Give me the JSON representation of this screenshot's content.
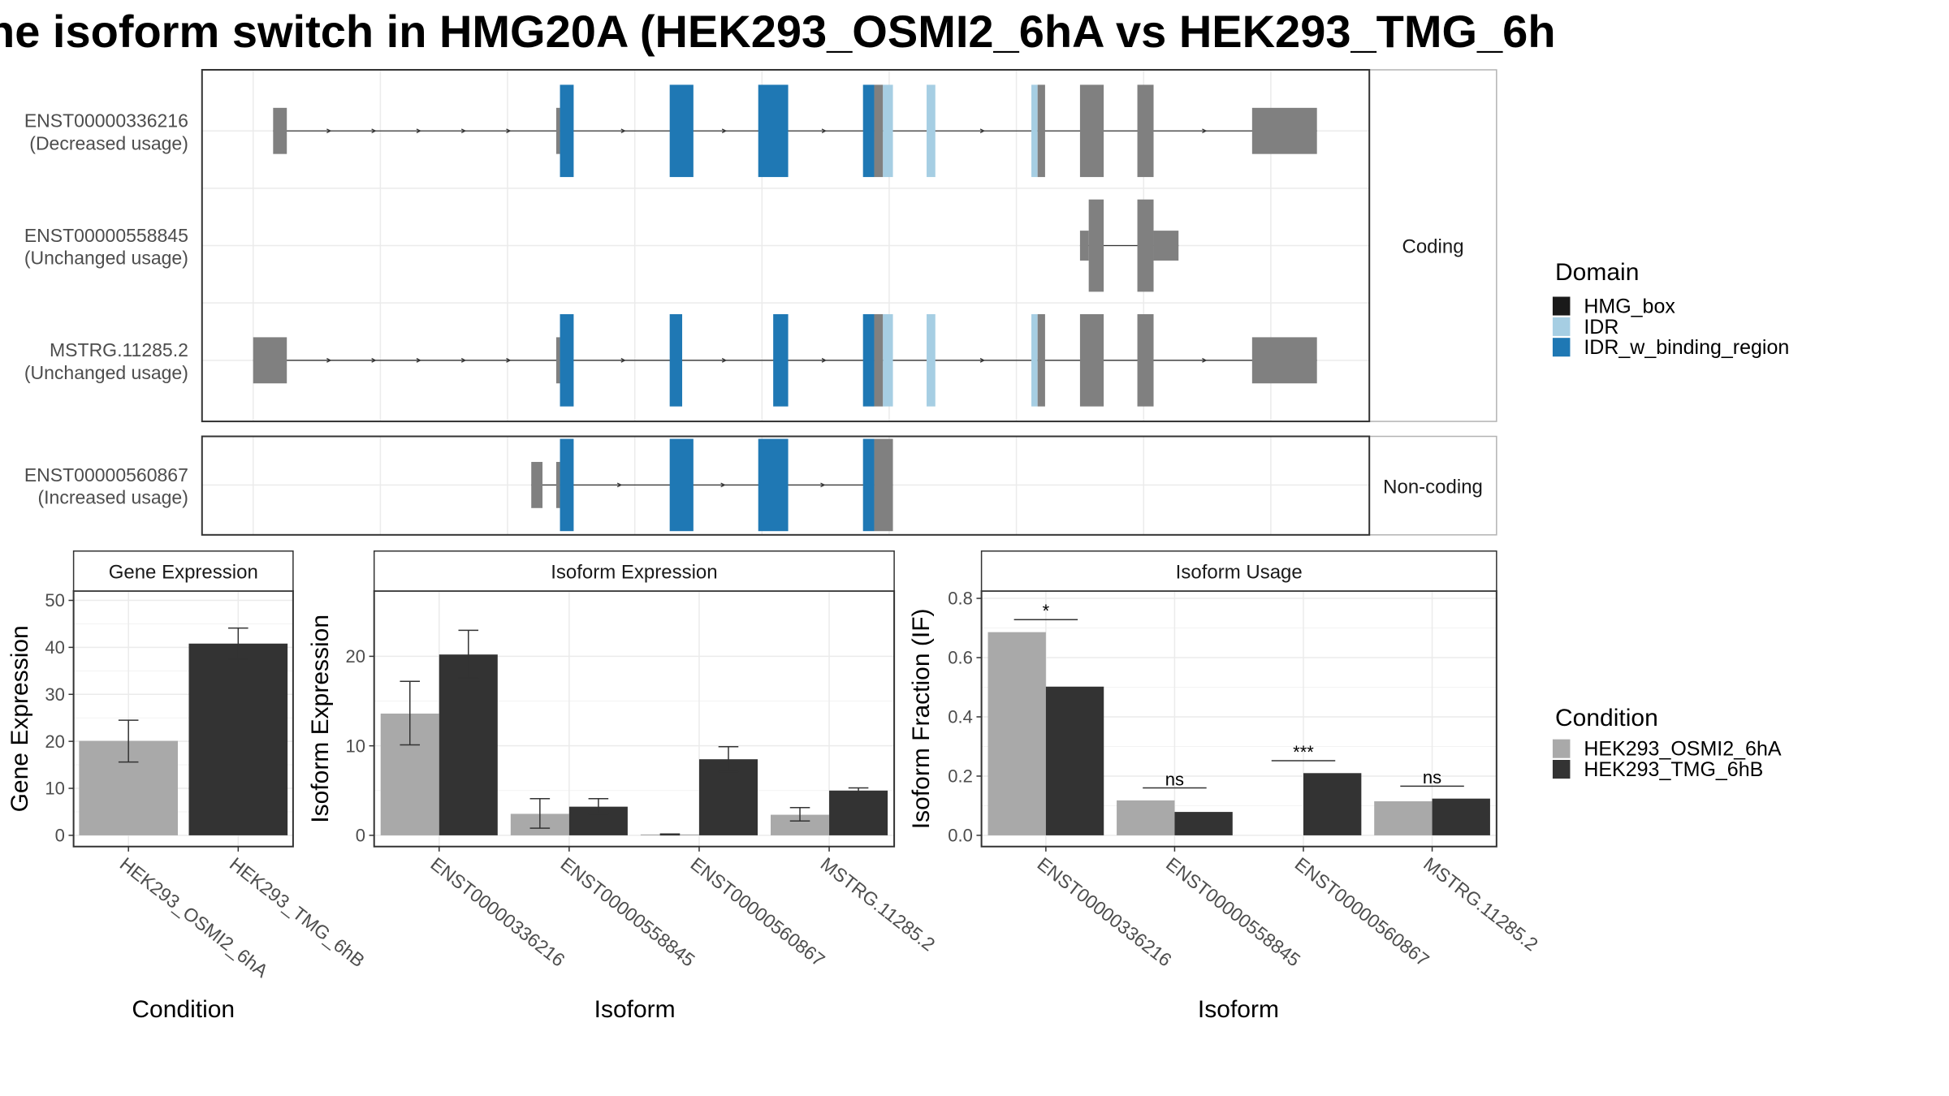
{
  "title": "ne isoform switch in HMG20A (HEK293_OSMI2_6hA vs HEK293_TMG_6h",
  "colors": {
    "exon": "#808080",
    "HMG_box": "#1a1a1a",
    "IDR": "#a6cee3",
    "IDR_w_binding_region": "#1f78b4",
    "cond1": "#a9a9a9",
    "cond2": "#333333",
    "grid": "#ebebeb",
    "panel_border": "#333333",
    "strip_border": "#b3b3b3"
  },
  "structure": {
    "groups": [
      {
        "label": "Coding",
        "isoforms": [
          {
            "id": "ENST00000336216",
            "usage": "(Decreased usage)",
            "exons": [
              [
                219,
                230,
                "e"
              ],
              [
                446,
                449,
                "e"
              ],
              [
                449,
                460,
                "b"
              ],
              [
                537,
                556,
                "b"
              ],
              [
                608,
                632,
                "b"
              ],
              [
                692,
                701,
                "b"
              ],
              [
                701,
                708,
                "e"
              ],
              [
                708,
                716,
                "l"
              ],
              [
                743,
                750,
                "l"
              ],
              [
                827,
                832,
                "l"
              ],
              [
                832,
                838,
                "e"
              ],
              [
                866,
                885,
                "e"
              ],
              [
                912,
                925,
                "e"
              ],
              [
                1004,
                1056,
                "e"
              ]
            ],
            "arrows": [
              265,
              301,
              337,
              373,
              409,
              501,
              582,
              662,
              789,
              967
            ]
          },
          {
            "id": "ENST00000558845",
            "usage": "(Unchanged usage)",
            "exons": [
              [
                866,
                873,
                "s"
              ],
              [
                873,
                885,
                "e"
              ],
              [
                912,
                925,
                "e"
              ],
              [
                925,
                945,
                "s"
              ]
            ],
            "arrows": []
          },
          {
            "id": "MSTRG.11285.2",
            "usage": "(Unchanged usage)",
            "exons": [
              [
                203,
                230,
                "e"
              ],
              [
                446,
                449,
                "e"
              ],
              [
                449,
                460,
                "b"
              ],
              [
                537,
                547,
                "b"
              ],
              [
                620,
                632,
                "b"
              ],
              [
                692,
                701,
                "b"
              ],
              [
                701,
                708,
                "e"
              ],
              [
                708,
                716,
                "l"
              ],
              [
                743,
                750,
                "l"
              ],
              [
                827,
                832,
                "l"
              ],
              [
                832,
                838,
                "e"
              ],
              [
                866,
                885,
                "e"
              ],
              [
                912,
                925,
                "e"
              ],
              [
                1004,
                1056,
                "e"
              ]
            ],
            "arrows": [
              265,
              301,
              337,
              373,
              409,
              501,
              582,
              662,
              789,
              967
            ]
          }
        ]
      },
      {
        "label": "Non-coding",
        "isoforms": [
          {
            "id": "ENST00000560867",
            "usage": "(Increased usage)",
            "exons": [
              [
                426,
                435,
                "e"
              ],
              [
                446,
                449,
                "e"
              ],
              [
                449,
                460,
                "b"
              ],
              [
                537,
                556,
                "b"
              ],
              [
                608,
                632,
                "b"
              ],
              [
                692,
                701,
                "b"
              ],
              [
                701,
                716,
                "e"
              ]
            ],
            "arrows": [
              498,
              581,
              661
            ]
          }
        ]
      }
    ]
  },
  "legends": {
    "domain": {
      "title": "Domain",
      "items": [
        "HMG_box",
        "IDR",
        "IDR_w_binding_region"
      ]
    },
    "condition": {
      "title": "Condition",
      "items": [
        "HEK293_OSMI2_6hA",
        "HEK293_TMG_6hB"
      ]
    }
  },
  "chart_data": [
    {
      "type": "bar",
      "title": "Gene Expression",
      "xlabel": "Condition",
      "ylabel": "Gene Expression",
      "categories": [
        "HEK293_OSMI2_6hA",
        "HEK293_TMG_6hB"
      ],
      "ylim": [
        0,
        52
      ],
      "yticks": [
        0,
        10,
        20,
        30,
        40,
        50
      ],
      "values": [
        20.1,
        40.8
      ],
      "error": [
        [
          15.6,
          24.5
        ],
        [
          37.5,
          44.1
        ]
      ]
    },
    {
      "type": "bar",
      "title": "Isoform Expression",
      "xlabel": "Isoform",
      "ylabel": "Isoform Expression",
      "categories": [
        "ENST00000336216",
        "ENST00000558845",
        "ENST00000560867",
        "MSTRG.11285.2"
      ],
      "ylim": [
        0,
        27.3
      ],
      "yticks": [
        0,
        10,
        20
      ],
      "series": [
        {
          "name": "HEK293_OSMI2_6hA",
          "values": [
            13.6,
            2.4,
            0.1,
            2.3
          ],
          "error": [
            [
              10.1,
              17.2
            ],
            [
              0.8,
              4.1
            ],
            [
              0.05,
              0.15
            ],
            [
              1.6,
              3.1
            ]
          ]
        },
        {
          "name": "HEK293_TMG_6hB",
          "values": [
            20.2,
            3.2,
            8.5,
            5.0
          ],
          "error": [
            [
              17.6,
              22.9
            ],
            [
              2.4,
              4.1
            ],
            [
              7.1,
              9.9
            ],
            [
              4.6,
              5.3
            ]
          ]
        }
      ]
    },
    {
      "type": "bar",
      "title": "Isoform Usage",
      "xlabel": "Isoform",
      "ylabel": "Isoform Fraction (IF)",
      "categories": [
        "ENST00000336216",
        "ENST00000558845",
        "ENST00000560867",
        "MSTRG.11285.2"
      ],
      "ylim": [
        0,
        0.825
      ],
      "yticks": [
        "0.0",
        "0.2",
        "0.4",
        "0.6",
        "0.8"
      ],
      "series": [
        {
          "name": "HEK293_OSMI2_6hA",
          "values": [
            0.686,
            0.118,
            0.0,
            0.115
          ]
        },
        {
          "name": "HEK293_TMG_6hB",
          "values": [
            0.502,
            0.079,
            0.21,
            0.124
          ]
        }
      ],
      "significance": [
        "*",
        "ns",
        "***",
        "ns"
      ]
    }
  ]
}
